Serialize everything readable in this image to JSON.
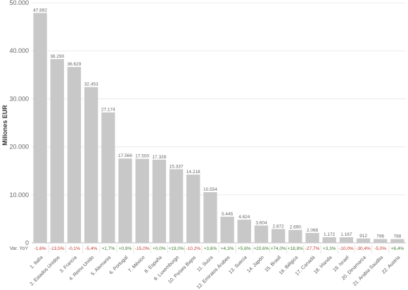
{
  "chart_data": {
    "type": "bar",
    "ylabel": "Millones EUR",
    "ylim": [
      0,
      50000
    ],
    "yticks": [
      "0",
      "10.000",
      "20.000",
      "30.000",
      "40.000",
      "50.000"
    ],
    "ytick_values": [
      0,
      10000,
      20000,
      30000,
      40000,
      50000
    ],
    "grid": true,
    "bar_color": "#c8c8c8",
    "var_title": "Var. YoY",
    "positive_color": "#3a7d2c",
    "negative_color": "#c0392b",
    "categories": [
      "1. Italia",
      "2. Estados Unidos",
      "3. Francia",
      "4. Reino Unido",
      "5. Alemania",
      "6. Portugal",
      "7. México",
      "8. España",
      "9. Luxemburgo",
      "10. Países Bajos",
      "11. Suiza",
      "12. Emiratos Árabes",
      "13. Suecia",
      "14. Japón",
      "15. Brasil",
      "16. Bélgica",
      "17. Canadá",
      "18. Irlanda",
      "19. Israel",
      "20. Dinamarca",
      "21. Arabia Saudita",
      "22. Austria"
    ],
    "values": [
      47892,
      38290,
      36629,
      32453,
      27174,
      17566,
      17500,
      17328,
      15337,
      14218,
      10554,
      5445,
      4824,
      3604,
      2872,
      2690,
      2068,
      1172,
      1167,
      912,
      796,
      788
    ],
    "value_labels": [
      "47.892",
      "38.290",
      "36.629",
      "32.453",
      "27.174",
      "17.566",
      "17.500",
      "17.328",
      "15.337",
      "14.218",
      "10.554",
      "5.445",
      "4.824",
      "3.604",
      "2.872",
      "2.690",
      "2.068",
      "1.172",
      "1.167",
      "912",
      "796",
      "788"
    ],
    "var_yoy": [
      "-1,6%",
      "-13,5%",
      "-0,1%",
      "-5,4%",
      "+1,7%",
      "+0,9%",
      "-15,0%",
      "+0,0%",
      "+19,0%",
      "-10,2%",
      "+3,6%",
      "+4,3%",
      "+5,6%",
      "+20,6%",
      "+74,0%",
      "+18,8%",
      "-27,7%",
      "+3,3%",
      "-10,0%",
      "-30,4%",
      "-5,0%",
      "+6,4%"
    ]
  }
}
